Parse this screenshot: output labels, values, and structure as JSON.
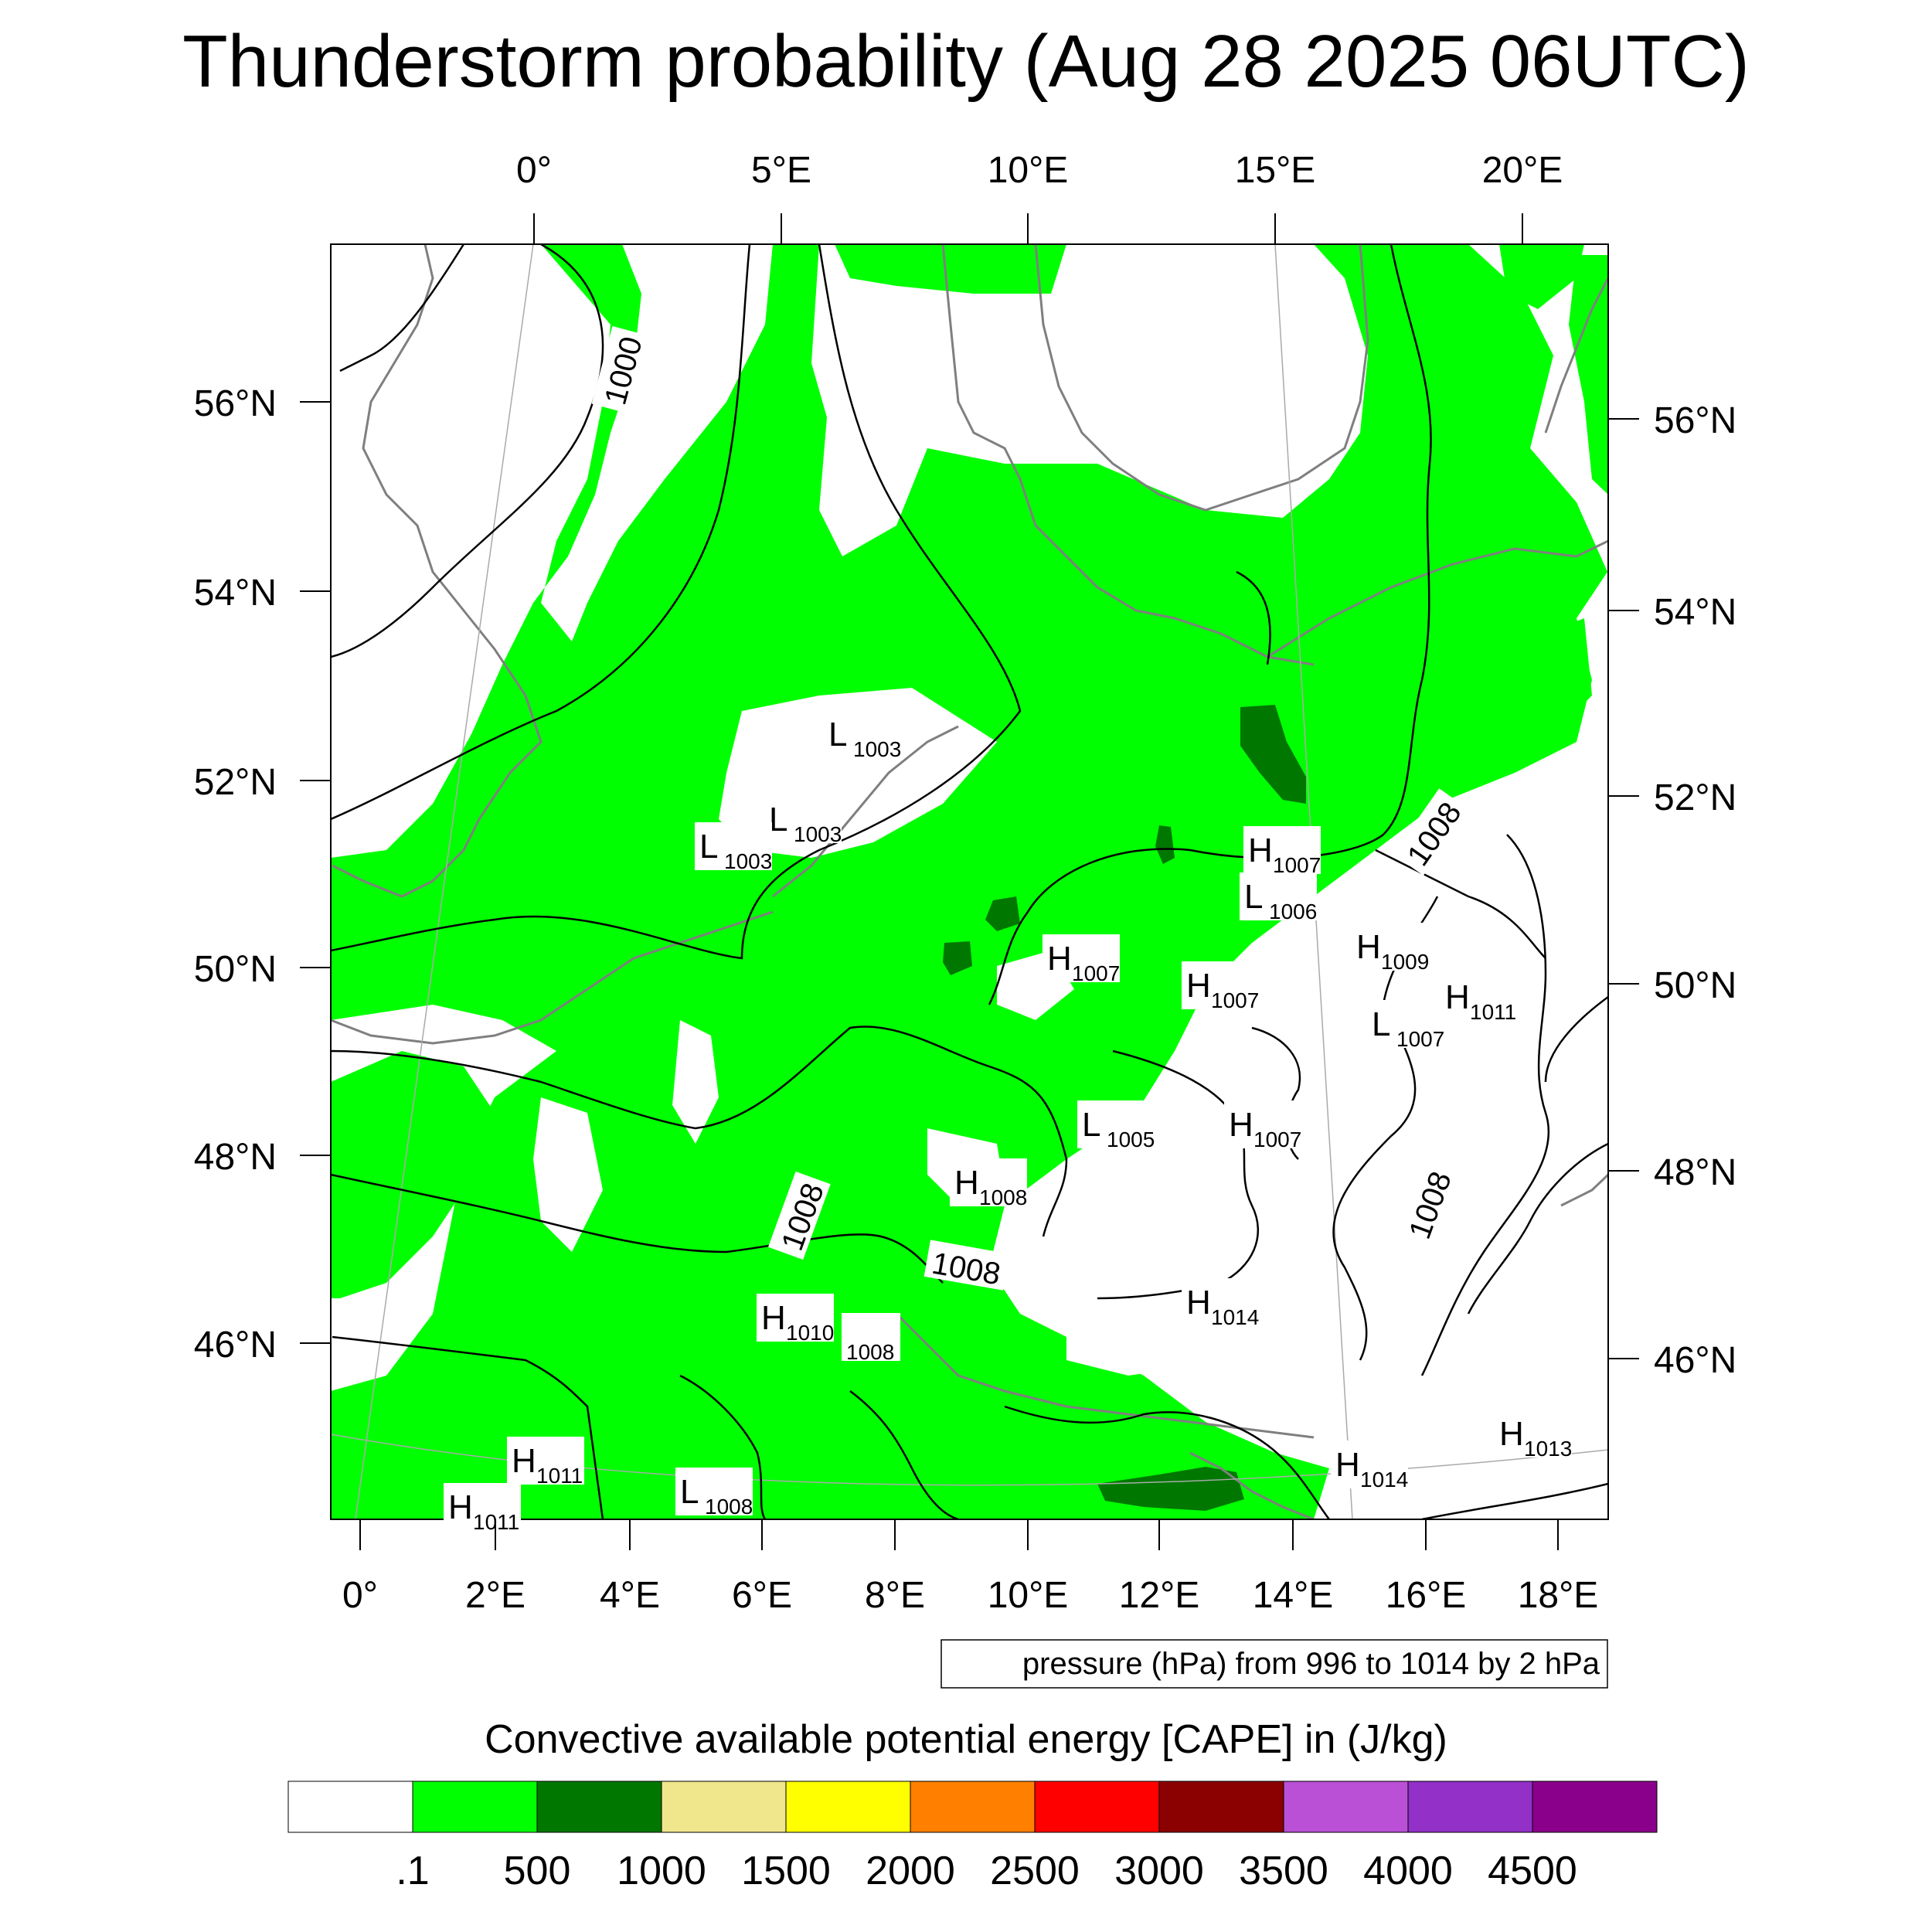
{
  "title": "Thunderstorm probability (Aug 28 2025 06UTC)",
  "top_lon_labels": [
    "0°",
    "5°E",
    "10°E",
    "15°E",
    "20°E"
  ],
  "bottom_lon_labels": [
    "0°",
    "2°E",
    "4°E",
    "6°E",
    "8°E",
    "10°E",
    "12°E",
    "14°E",
    "16°E",
    "18°E"
  ],
  "left_lat_labels": [
    "56°N",
    "54°N",
    "52°N",
    "50°N",
    "48°N",
    "46°N"
  ],
  "right_lat_labels": [
    "56°N",
    "54°N",
    "52°N",
    "50°N",
    "48°N",
    "46°N"
  ],
  "contour_note": "pressure (hPa) from 996 to 1014 by 2 hPa",
  "colorbar_title": "Convective available potential energy [CAPE] in (J/kg)",
  "colorbar": {
    "colors": [
      "#ffffff",
      "#00ff00",
      "#007800",
      "#f0e68c",
      "#ffff00",
      "#ff8000",
      "#ff0000",
      "#8b0000",
      "#b950d6",
      "#9330c8",
      "#8b008b"
    ],
    "labels": [
      ".1",
      "500",
      "1000",
      "1500",
      "2000",
      "2500",
      "3000",
      "3500",
      "4000",
      "4500"
    ]
  },
  "contour_labels": [
    {
      "text": "1000"
    },
    {
      "text": "1008"
    },
    {
      "text": "1008"
    },
    {
      "text": "1008"
    },
    {
      "text": "1008"
    }
  ],
  "pressure_centers": [
    {
      "type": "L",
      "value": "1003"
    },
    {
      "type": "L",
      "value": "1003"
    },
    {
      "type": "L",
      "value": "1003"
    },
    {
      "type": "H",
      "value": "1007"
    },
    {
      "type": "L",
      "value": "1006"
    },
    {
      "type": "H",
      "value": "1007"
    },
    {
      "type": "H",
      "value": "1007"
    },
    {
      "type": "H",
      "value": "1009"
    },
    {
      "type": "H",
      "value": "1011"
    },
    {
      "type": "L",
      "value": "1007"
    },
    {
      "type": "L",
      "value": "1005"
    },
    {
      "type": "H",
      "value": "1007"
    },
    {
      "type": "H",
      "value": "1008"
    },
    {
      "type": "H",
      "value": "1014"
    },
    {
      "type": "H",
      "value": "1010"
    },
    {
      "type": "",
      "value": "1008"
    },
    {
      "type": "H",
      "value": "1011"
    },
    {
      "type": "L",
      "value": "1008"
    },
    {
      "type": "H",
      "value": "1014"
    },
    {
      "type": "H",
      "value": "1013"
    },
    {
      "type": "H",
      "value": "1011"
    }
  ]
}
